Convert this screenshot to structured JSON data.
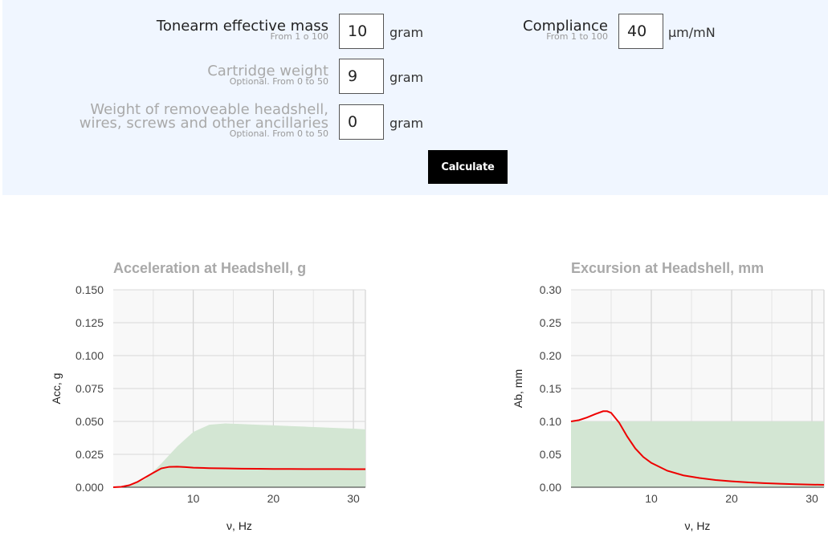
{
  "form": {
    "tonearm": {
      "label": "Tonearm effective mass",
      "hint": "From 1 o 100",
      "value": "10",
      "unit": "gram"
    },
    "compliance": {
      "label": "Compliance",
      "hint": "From 1 to 100",
      "value": "40",
      "unit": "µm/mN"
    },
    "cartridge": {
      "label": "Cartridge weight",
      "hint": "Optional. From 0 to 50",
      "value": "9",
      "unit": "gram"
    },
    "headshell": {
      "label_line1": "Weight of removeable headshell,",
      "label_line2": "wires, screws and other ancillaries",
      "hint": "Optional. From 0 to 50",
      "value": "0",
      "unit": "gram"
    },
    "calculate_label": "Calculate"
  },
  "colors": {
    "panel": "#f0f6ff",
    "curve": "#ee0000",
    "band": "#d3e6d3",
    "plot_bg": "#f8f8f8",
    "title": "#a9a9a9"
  },
  "chart_data": [
    {
      "type": "area",
      "title": "Acceleration at Headshell, g",
      "xlabel": "ν, Hz",
      "ylabel": "Acc, g",
      "xlim": [
        0,
        31.5
      ],
      "ylim": [
        0,
        0.15
      ],
      "xticks": [
        10,
        20,
        30
      ],
      "yticks": [
        0,
        0.025,
        0.05,
        0.075,
        0.1,
        0.125,
        0.15
      ],
      "ytick_labels": [
        "0.000",
        "0.025",
        "0.050",
        "0.075",
        "0.100",
        "0.125",
        "0.150"
      ],
      "grid": true,
      "band": {
        "x": [
          0,
          2,
          4,
          6,
          8,
          10,
          12,
          14,
          16,
          18,
          20,
          22,
          24,
          26,
          28,
          30,
          31.5
        ],
        "y": [
          0,
          0.001,
          0.006,
          0.018,
          0.031,
          0.042,
          0.0475,
          0.0485,
          0.048,
          0.0475,
          0.047,
          0.0465,
          0.046,
          0.0455,
          0.045,
          0.0445,
          0.044
        ]
      },
      "series": [
        {
          "x": [
            0,
            1,
            2,
            3,
            4,
            5,
            6,
            7,
            8,
            9,
            10,
            12,
            14,
            16,
            18,
            20,
            22,
            24,
            26,
            28,
            30,
            31.5
          ],
          "y": [
            0,
            0.0003,
            0.0015,
            0.004,
            0.0075,
            0.011,
            0.0143,
            0.0155,
            0.0156,
            0.0153,
            0.0149,
            0.0145,
            0.0143,
            0.0141,
            0.014,
            0.0139,
            0.0139,
            0.0138,
            0.0138,
            0.0138,
            0.0137,
            0.0137
          ]
        }
      ]
    },
    {
      "type": "area",
      "title": "Excursion at Headshell, mm",
      "xlabel": "ν, Hz",
      "ylabel": "Ab, mm",
      "xlim": [
        0,
        31.5
      ],
      "ylim": [
        0,
        0.3
      ],
      "xticks": [
        10,
        20,
        30
      ],
      "yticks": [
        0,
        0.05,
        0.1,
        0.15,
        0.2,
        0.25,
        0.3
      ],
      "ytick_labels": [
        "0.00",
        "0.05",
        "0.10",
        "0.15",
        "0.20",
        "0.25",
        "0.30"
      ],
      "grid": true,
      "band": {
        "x": [
          0,
          31.5
        ],
        "y": [
          0.1,
          0.1
        ]
      },
      "series": [
        {
          "x": [
            0,
            1,
            2,
            3,
            4,
            4.5,
            5,
            6,
            7,
            8,
            9,
            10,
            12,
            14,
            16,
            18,
            20,
            22,
            24,
            26,
            28,
            30,
            31.5
          ],
          "y": [
            0.1,
            0.102,
            0.106,
            0.111,
            0.1155,
            0.1155,
            0.113,
            0.098,
            0.077,
            0.059,
            0.046,
            0.037,
            0.025,
            0.018,
            0.014,
            0.011,
            0.009,
            0.0075,
            0.0063,
            0.0053,
            0.0046,
            0.004,
            0.0037
          ]
        }
      ]
    }
  ]
}
